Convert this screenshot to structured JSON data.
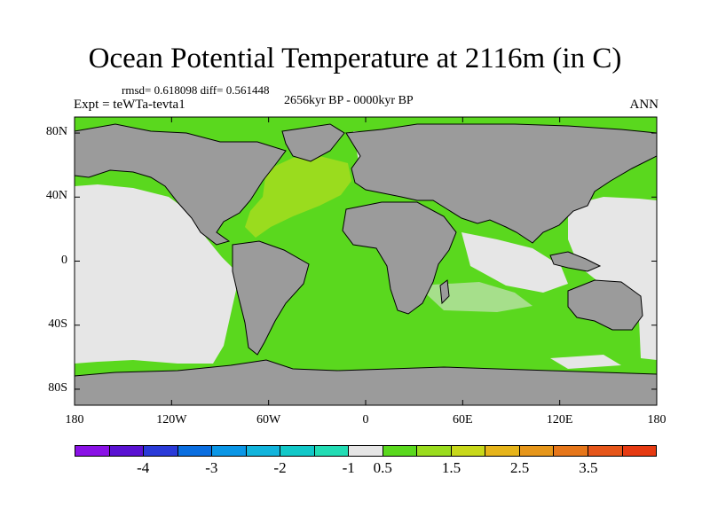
{
  "title": "Ocean Potential Temperature at 2116m (in C)",
  "stats": "rmsd= 0.618098 diff= 0.561448",
  "period": "2656kyr BP - 0000kyr BP",
  "experiment": "Expt = teWTa-tevta1",
  "season": "ANN",
  "map": {
    "lon_range": [
      -180,
      180
    ],
    "lat_range": [
      -90,
      90
    ],
    "lon_ticks": [
      {
        "value": -180,
        "label": "180"
      },
      {
        "value": -120,
        "label": "120W"
      },
      {
        "value": -60,
        "label": "60W"
      },
      {
        "value": 0,
        "label": "0"
      },
      {
        "value": 60,
        "label": "60E"
      },
      {
        "value": 120,
        "label": "120E"
      },
      {
        "value": 180,
        "label": "180"
      }
    ],
    "lat_ticks": [
      {
        "value": 80,
        "label": "80N"
      },
      {
        "value": 40,
        "label": "40N"
      },
      {
        "value": 0,
        "label": "0"
      },
      {
        "value": -40,
        "label": "40S"
      },
      {
        "value": -80,
        "label": "80S"
      }
    ],
    "land_color": "#9b9b9b",
    "coast_color": "#000000"
  },
  "colorbar": {
    "colors": [
      "#8a12e6",
      "#5a12d2",
      "#2a3ad8",
      "#0a6ee0",
      "#0a96e6",
      "#12b4dc",
      "#12c8c8",
      "#22dcb4",
      "#e6e6e6",
      "#5ad81e",
      "#9adc1e",
      "#c8d81a",
      "#e6b41a",
      "#e6961a",
      "#e6761a",
      "#e6561a",
      "#e63a12"
    ],
    "labels": [
      {
        "text": "-4",
        "boundary": 2
      },
      {
        "text": "-3",
        "boundary": 4
      },
      {
        "text": "-2",
        "boundary": 6
      },
      {
        "text": "-1",
        "boundary": 8
      },
      {
        "text": "0.5",
        "boundary": 9
      },
      {
        "text": "1.5",
        "boundary": 11
      },
      {
        "text": "2.5",
        "boundary": 13
      },
      {
        "text": "3.5",
        "boundary": 15
      }
    ]
  }
}
